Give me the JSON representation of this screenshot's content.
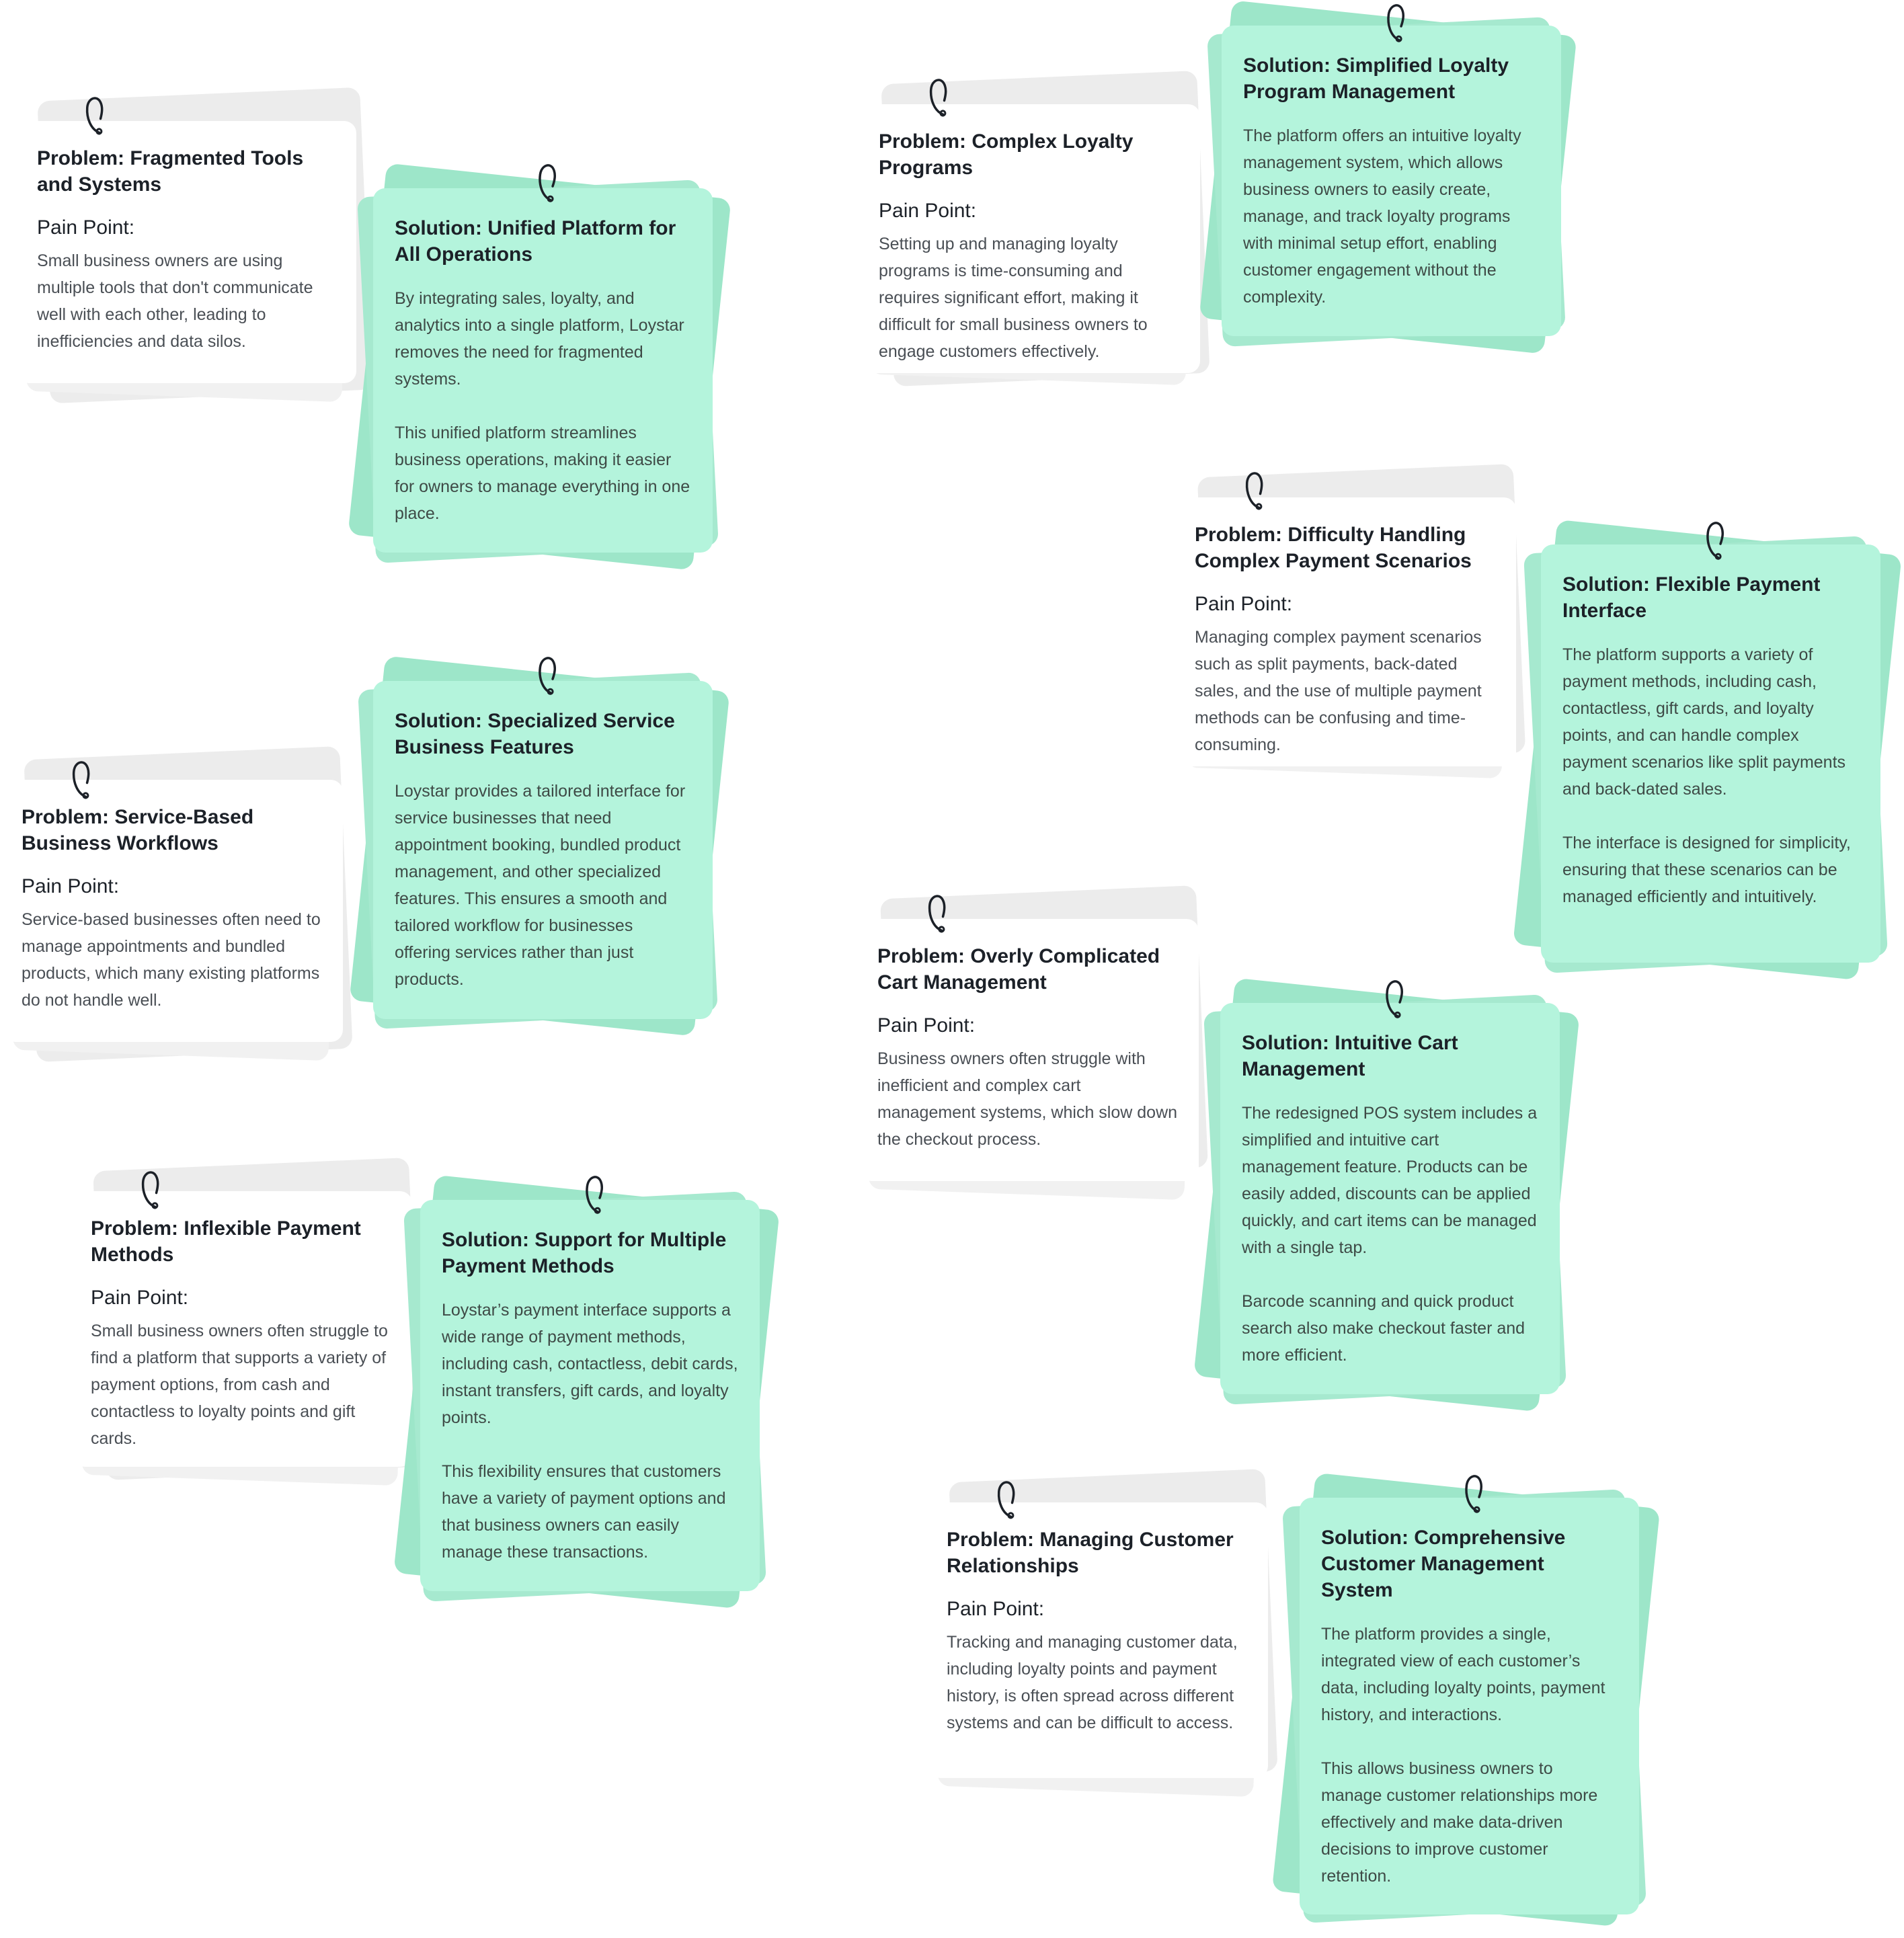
{
  "labels": {
    "pain_point": "Pain Point:"
  },
  "colors": {
    "solution_card": "#b4f4dc",
    "solution_shadow": "#9de6c9",
    "problem_shadow": "#ececec",
    "title_text": "#1c2128",
    "body_text": "#4a4f55"
  },
  "icons": {
    "pin": "paper-clip-icon"
  },
  "pairs": [
    {
      "problem": {
        "title": "Problem: Fragmented Tools and Systems",
        "description": "Small business owners are using multiple tools that don't communicate well with each other, leading to inefficiencies and data silos."
      },
      "solution": {
        "title": "Solution: Unified Platform for All Operations",
        "description": "By integrating sales, loyalty, and analytics into a single platform, Loystar removes the need for fragmented systems.\n\nThis unified platform streamlines business operations, making it easier for owners to manage everything in one place."
      }
    },
    {
      "problem": {
        "title": "Problem: Service-Based Business Workflows",
        "description": "Service-based businesses often need to manage appointments and bundled products, which many existing platforms do not handle well."
      },
      "solution": {
        "title": "Solution: Specialized Service Business Features",
        "description": "Loystar provides a tailored interface for service businesses that need appointment booking, bundled product management, and other specialized features. This ensures a smooth and tailored workflow for businesses offering services rather than just products."
      }
    },
    {
      "problem": {
        "title": "Problem: Inflexible Payment Methods",
        "description": "Small business owners often struggle to find a platform that supports a variety of payment options, from cash and contactless to loyalty points and gift cards."
      },
      "solution": {
        "title": "Solution: Support for Multiple Payment Methods",
        "description": "Loystar’s payment interface supports a wide range of payment methods, including cash, contactless, debit cards, instant transfers, gift cards, and loyalty points.\n\nThis flexibility ensures that customers have a variety of payment options and that business owners can easily manage these transactions."
      }
    },
    {
      "problem": {
        "title": "Problem: Complex Loyalty Programs",
        "description": "Setting up and managing loyalty programs is time-consuming and requires significant effort, making it difficult for small business owners to engage customers effectively."
      },
      "solution": {
        "title": "Solution: Simplified Loyalty Program Management",
        "description": "The platform offers an intuitive loyalty management system, which allows business owners to easily create, manage, and track loyalty programs with minimal setup effort, enabling customer engagement without the complexity."
      }
    },
    {
      "problem": {
        "title": "Problem: Difficulty Handling Complex Payment Scenarios",
        "description": "Managing complex payment scenarios such as split payments, back-dated sales, and the use of multiple payment methods can be confusing and time-consuming."
      },
      "solution": {
        "title": "Solution: Flexible Payment Interface",
        "description": "The platform supports a variety of payment methods, including cash, contactless, gift cards, and loyalty points, and can handle complex payment scenarios like split payments and back-dated sales.\n\nThe interface is designed for simplicity, ensuring that these scenarios can be managed efficiently and intuitively."
      }
    },
    {
      "problem": {
        "title": "Problem: Overly Complicated Cart Management",
        "description": "Business owners often struggle with inefficient and complex cart management systems, which slow down the checkout process."
      },
      "solution": {
        "title": "Solution: Intuitive Cart Management",
        "description": "The redesigned POS system includes a simplified and intuitive cart management feature. Products can be easily added, discounts can be applied quickly, and cart items can be managed with a single tap.\n\nBarcode scanning and quick product search also make checkout faster and more efficient."
      }
    },
    {
      "problem": {
        "title": "Problem: Managing Customer Relationships",
        "description": "Tracking and managing customer data, including loyalty points and payment history, is often spread across different systems and can be difficult to access."
      },
      "solution": {
        "title": "Solution: Comprehensive Customer Management System",
        "description": "The platform provides a single, integrated view of each customer’s data, including loyalty points, payment history, and interactions.\n\nThis allows business owners to manage customer relationships more effectively and make data-driven decisions to improve customer retention."
      }
    }
  ]
}
